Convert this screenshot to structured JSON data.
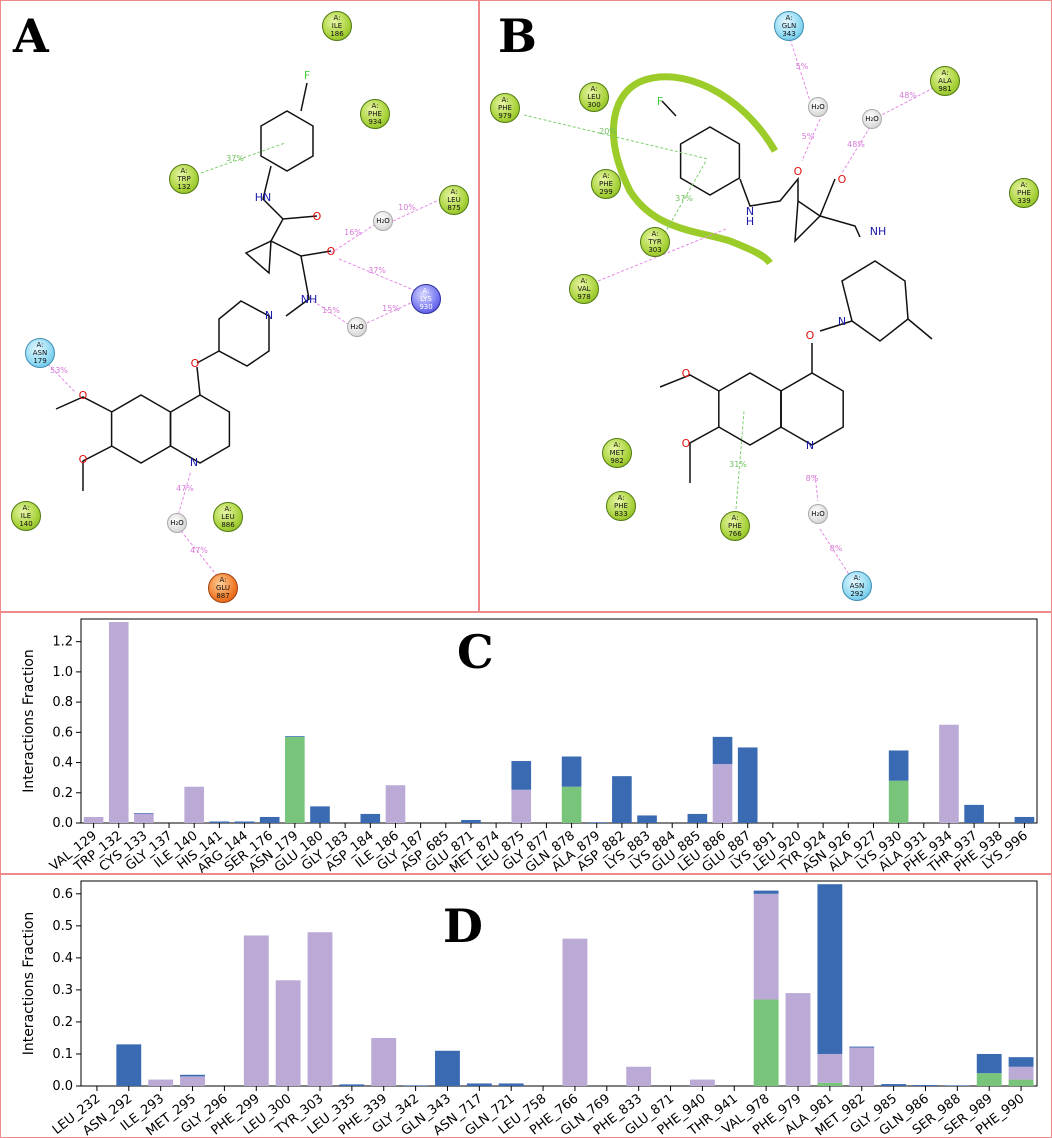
{
  "panels": {
    "a_label": "A",
    "b_label": "B",
    "c_label": "C",
    "d_label": "D"
  },
  "panel_a": {
    "residues": [
      {
        "chain": "A:",
        "name": "ILE",
        "num": "186",
        "style": "g"
      },
      {
        "chain": "A:",
        "name": "PHE",
        "num": "934",
        "style": "g"
      },
      {
        "chain": "A:",
        "name": "TRP",
        "num": "132",
        "style": "g"
      },
      {
        "chain": "A:",
        "name": "LEU",
        "num": "875",
        "style": "g"
      },
      {
        "chain": "A:",
        "name": "LYS",
        "num": "930",
        "style": "b"
      },
      {
        "chain": "A:",
        "name": "ASN",
        "num": "179",
        "style": "c"
      },
      {
        "chain": "A:",
        "name": "ILE",
        "num": "140",
        "style": "g"
      },
      {
        "chain": "A:",
        "name": "LEU",
        "num": "886",
        "style": "g"
      },
      {
        "chain": "A:",
        "name": "GLU",
        "num": "887",
        "style": "o"
      }
    ],
    "waters": [
      "H₂O",
      "H₂O",
      "H₂O"
    ],
    "percents": [
      "37%",
      "16%",
      "10%",
      "37%",
      "15%",
      "15%",
      "53%",
      "47%",
      "47%"
    ],
    "atoms": [
      "F",
      "HN",
      "O",
      "O",
      "NH",
      "N",
      "O",
      "O",
      "O",
      "N"
    ]
  },
  "panel_b": {
    "residues": [
      {
        "chain": "A:",
        "name": "GLN",
        "num": "343",
        "style": "c"
      },
      {
        "chain": "A:",
        "name": "ALA",
        "num": "981",
        "style": "g"
      },
      {
        "chain": "A:",
        "name": "LEU",
        "num": "300",
        "style": "g"
      },
      {
        "chain": "A:",
        "name": "PHE",
        "num": "979",
        "style": "g"
      },
      {
        "chain": "A:",
        "name": "PHE",
        "num": "299",
        "style": "g"
      },
      {
        "chain": "A:",
        "name": "PHE",
        "num": "339",
        "style": "g"
      },
      {
        "chain": "A:",
        "name": "TYR",
        "num": "303",
        "style": "g"
      },
      {
        "chain": "A:",
        "name": "VAL",
        "num": "978",
        "style": "g"
      },
      {
        "chain": "A:",
        "name": "MET",
        "num": "982",
        "style": "g"
      },
      {
        "chain": "A:",
        "name": "PHE",
        "num": "833",
        "style": "g"
      },
      {
        "chain": "A:",
        "name": "PHE",
        "num": "766",
        "style": "g"
      },
      {
        "chain": "A:",
        "name": "ASN",
        "num": "292",
        "style": "c"
      }
    ],
    "waters": [
      "H₂O",
      "H₂O",
      "H₂O"
    ],
    "percents": [
      "5%",
      "48%",
      "20%",
      "5%",
      "48%",
      "37%",
      "31%",
      "8%",
      "8%"
    ],
    "atoms": [
      "F",
      "N",
      "H",
      "O",
      "O",
      "NH",
      "N",
      "O",
      "O",
      "O",
      "N"
    ]
  },
  "chart_data": [
    {
      "type": "bar",
      "stacked": true,
      "ylabel": "Interactions Fraction",
      "ylim": [
        0,
        1.35
      ],
      "yticks": [
        "0.0",
        "0.2",
        "0.4",
        "0.6",
        "0.8",
        "1.0",
        "1.2"
      ],
      "categories": [
        "VAL_129",
        "TRP_132",
        "CYS_133",
        "GLY_137",
        "ILE_140",
        "HIS_141",
        "ARG_144",
        "SER_176",
        "ASN_179",
        "GLU_180",
        "GLY_183",
        "ASP_184",
        "ILE_186",
        "GLY_187",
        "ASP_685",
        "GLU_871",
        "MET_874",
        "LEU_875",
        "GLY_877",
        "GLN_878",
        "ALA_879",
        "ASP_882",
        "LYS_883",
        "LYS_884",
        "GLU_885",
        "LEU_886",
        "GLU_887",
        "LYS_891",
        "LEU_920",
        "TYR_924",
        "ASN_926",
        "ALA_927",
        "LYS_930",
        "ALA_931",
        "PHE_934",
        "THR_937",
        "PHE_938",
        "LYS_996"
      ],
      "series": [
        {
          "color": "#77c47a",
          "values": [
            0,
            0,
            0,
            0,
            0,
            0,
            0,
            0,
            0.57,
            0,
            0,
            0,
            0,
            0,
            0,
            0,
            0,
            0,
            0,
            0.24,
            0,
            0,
            0,
            0,
            0,
            0,
            0,
            0,
            0,
            0,
            0,
            0,
            0.28,
            0,
            0,
            0,
            0,
            0
          ]
        },
        {
          "color": "#bba9d6",
          "values": [
            0.04,
            1.33,
            0.06,
            0,
            0.24,
            0,
            0,
            0,
            0,
            0,
            0,
            0,
            0.25,
            0,
            0,
            0,
            0,
            0.22,
            0,
            0,
            0,
            0,
            0,
            0,
            0,
            0.39,
            0,
            0,
            0,
            0,
            0,
            0,
            0,
            0,
            0.65,
            0,
            0,
            0
          ]
        },
        {
          "color": "#3a6ab2",
          "values": [
            0,
            0,
            0.005,
            0,
            0,
            0.01,
            0.01,
            0.04,
            0.005,
            0.11,
            0,
            0.06,
            0,
            0,
            0,
            0.02,
            0,
            0.19,
            0,
            0.2,
            0.005,
            0.31,
            0.05,
            0,
            0.06,
            0.18,
            0.5,
            0,
            0,
            0,
            0,
            0,
            0.2,
            0,
            0,
            0.12,
            0,
            0.04
          ]
        }
      ]
    },
    {
      "type": "bar",
      "stacked": true,
      "ylabel": "Interactions Fraction",
      "ylim": [
        0,
        0.64
      ],
      "yticks": [
        "0.0",
        "0.1",
        "0.2",
        "0.3",
        "0.4",
        "0.5",
        "0.6"
      ],
      "categories": [
        "LEU_232",
        "ASN_292",
        "ILE_293",
        "MET_295",
        "GLY_296",
        "PHE_299",
        "LEU_300",
        "TYR_303",
        "LEU_335",
        "PHE_339",
        "GLY_342",
        "GLN_343",
        "ASN_717",
        "GLN_721",
        "LEU_758",
        "PHE_766",
        "GLN_769",
        "PHE_833",
        "GLU_871",
        "PHE_940",
        "THR_941",
        "VAL_978",
        "PHE_979",
        "ALA_981",
        "MET_982",
        "GLY_985",
        "GLN_986",
        "SER_988",
        "SER_989",
        "PHE_990"
      ],
      "series": [
        {
          "color": "#77c47a",
          "values": [
            0,
            0,
            0,
            0,
            0,
            0,
            0,
            0,
            0,
            0,
            0,
            0,
            0,
            0,
            0,
            0,
            0,
            0,
            0,
            0,
            0,
            0.27,
            0,
            0.01,
            0,
            0,
            0,
            0,
            0.04,
            0.02
          ]
        },
        {
          "color": "#bba9d6",
          "values": [
            0,
            0,
            0.02,
            0.03,
            0,
            0.47,
            0.33,
            0.48,
            0,
            0.15,
            0,
            0,
            0,
            0,
            0,
            0.46,
            0,
            0.06,
            0,
            0.02,
            0,
            0.33,
            0.29,
            0.09,
            0.12,
            0,
            0,
            0,
            0,
            0.04
          ]
        },
        {
          "color": "#3a6ab2",
          "values": [
            0,
            0.13,
            0,
            0.005,
            0,
            0,
            0,
            0,
            0.005,
            0,
            0.002,
            0.11,
            0.008,
            0.008,
            0,
            0,
            0,
            0,
            0,
            0,
            0,
            0.01,
            0,
            0.53,
            0.003,
            0.006,
            0.003,
            0.002,
            0.06,
            0.03
          ]
        }
      ]
    }
  ]
}
